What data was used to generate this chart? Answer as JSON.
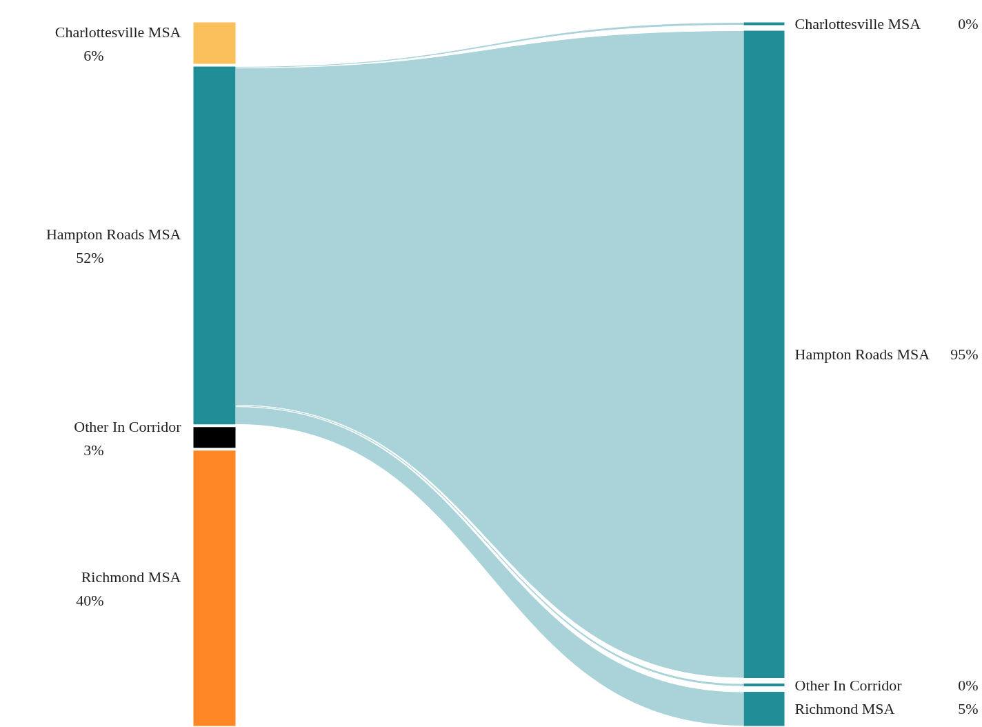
{
  "chart_data": {
    "type": "other",
    "categories": [
      "Charlottesville MSA",
      "Hampton Roads MSA",
      "Other In Corridor",
      "Richmond MSA"
    ],
    "series": [
      {
        "values": [
          6,
          52,
          3,
          40
        ],
        "value_labels": [
          "6%",
          "52%",
          "3%",
          "40%"
        ],
        "colors": [
          "#f9c05c",
          "#218e97",
          "#000000",
          "#fd8625"
        ]
      },
      {
        "values": [
          0,
          95,
          0,
          5
        ],
        "value_labels": [
          "0%",
          "95%",
          "0%",
          "5%"
        ],
        "colors": [
          "#218e97",
          "#218e97",
          "#218e97",
          "#218e97"
        ]
      }
    ],
    "color": "#a9d3d8"
  }
}
